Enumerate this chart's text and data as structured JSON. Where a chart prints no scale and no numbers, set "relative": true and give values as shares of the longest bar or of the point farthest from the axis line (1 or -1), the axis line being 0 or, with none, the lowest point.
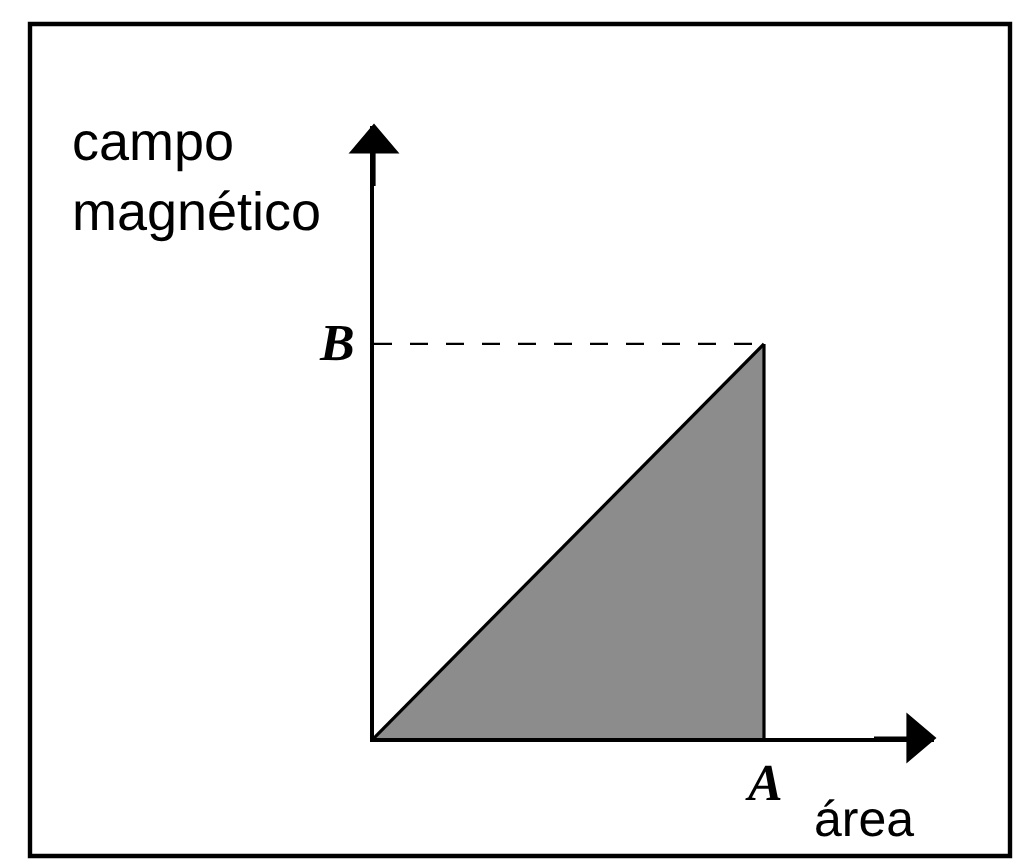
{
  "chart_data": {
    "type": "area",
    "ylabel": "campo magnético",
    "xlabel": "área",
    "categories": [
      null,
      null
    ],
    "values": [
      0,
      1
    ],
    "relative": true,
    "color": "#8c8c8c",
    "annotations": [
      "A"
    ],
    "ref_lines": [
      {
        "axis": "y",
        "value": 1,
        "label": "B",
        "line_style": "dashed",
        "color": "#000000"
      }
    ]
  }
}
